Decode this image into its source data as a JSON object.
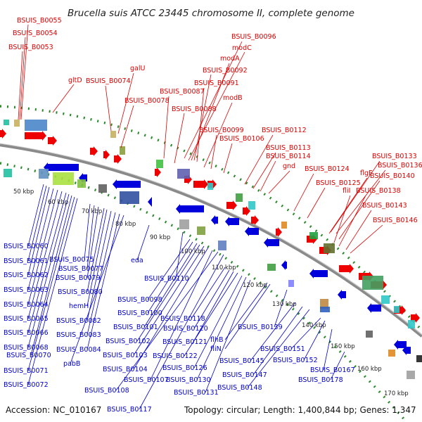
{
  "title": "Brucella suis ATCC 23445 chromosome II, complete genome",
  "footer": {
    "accession": "Accession: NC_010167",
    "info": "Topology: circular; Length: 1,400,844 bp; Genes: 1,347"
  },
  "colors": {
    "forward": "#ee0000",
    "reverse": "#0000dd",
    "backbone": "#888888",
    "dots": "#2a8a2a"
  },
  "kbp_labels": [
    "50 kbp",
    "60 kbp",
    "70 kbp",
    "80 kbp",
    "90 kbp",
    "100 kbp",
    "110 kbp",
    "120 kbp",
    "130 kbp",
    "140 kbp",
    "150 kbp",
    "160 kbp",
    "170 kbp"
  ],
  "red_labels": [
    "BSUIS_B0055",
    "BSUIS_B0054",
    "BSUIS_B0053",
    "gltD",
    "galU",
    "BSUIS_B0074",
    "BSUIS_B0078",
    "BSUIS_B0087",
    "BSUIS_B0088",
    "BSUIS_B0096",
    "modC",
    "modA",
    "BSUIS_B0092",
    "BSUIS_B0091",
    "modB",
    "BSUIS_B0099",
    "BSUIS_B0106",
    "BSUIS_B0112",
    "BSUIS_B0113",
    "BSUIS_B0114",
    "gnd",
    "BSUIS_B0124",
    "BSUIS_B0125",
    "BSUIS_B0133",
    "BSUIS_B0136",
    "flgF",
    "BSUIS_B0140",
    "fliI",
    "BSUIS_B0138",
    "BSUIS_B0143",
    "BSUIS_B0146"
  ],
  "blue_labels": [
    "BSUIS_B0060",
    "BSUIS_B0061",
    "BSUIS_B0062",
    "BSUIS_B0063",
    "BSUIS_B0064",
    "BSUIS_B0065",
    "BSUIS_B0066",
    "BSUIS_B0068",
    "BSUIS_B0070",
    "BSUIS_B0071",
    "BSUIS_B0072",
    "BSUIS_B0075",
    "BSUIS_B0077",
    "BSUIS_B0079",
    "BSUIS_B0080",
    "hemH",
    "BSUIS_B0082",
    "BSUIS_B0083",
    "BSUIS_B0084",
    "pabB",
    "eda",
    "BSUIS_B0110",
    "BSUIS_B0098",
    "BSUIS_B0100",
    "BSUIS_B0101",
    "BSUIS_B0102",
    "BSUIS_B0103",
    "BSUIS_B0104",
    "BSUIS_B0107",
    "BSUIS_B0108",
    "BSUIS_B0117",
    "BSUIS_B0118",
    "BSUIS_B0120",
    "BSUIS_B0121",
    "BSUIS_B0122",
    "BSUIS_B0126",
    "BSUIS_B0130",
    "BSUIS_B0131",
    "flhB",
    "fliN",
    "BSUIS_B0139",
    "BSUIS_B0145",
    "BSUIS_B0147",
    "BSUIS_B0148",
    "BSUIS_B0151",
    "BSUIS_B0152",
    "BSUIS_B0167",
    "BSUIS_B0178"
  ]
}
